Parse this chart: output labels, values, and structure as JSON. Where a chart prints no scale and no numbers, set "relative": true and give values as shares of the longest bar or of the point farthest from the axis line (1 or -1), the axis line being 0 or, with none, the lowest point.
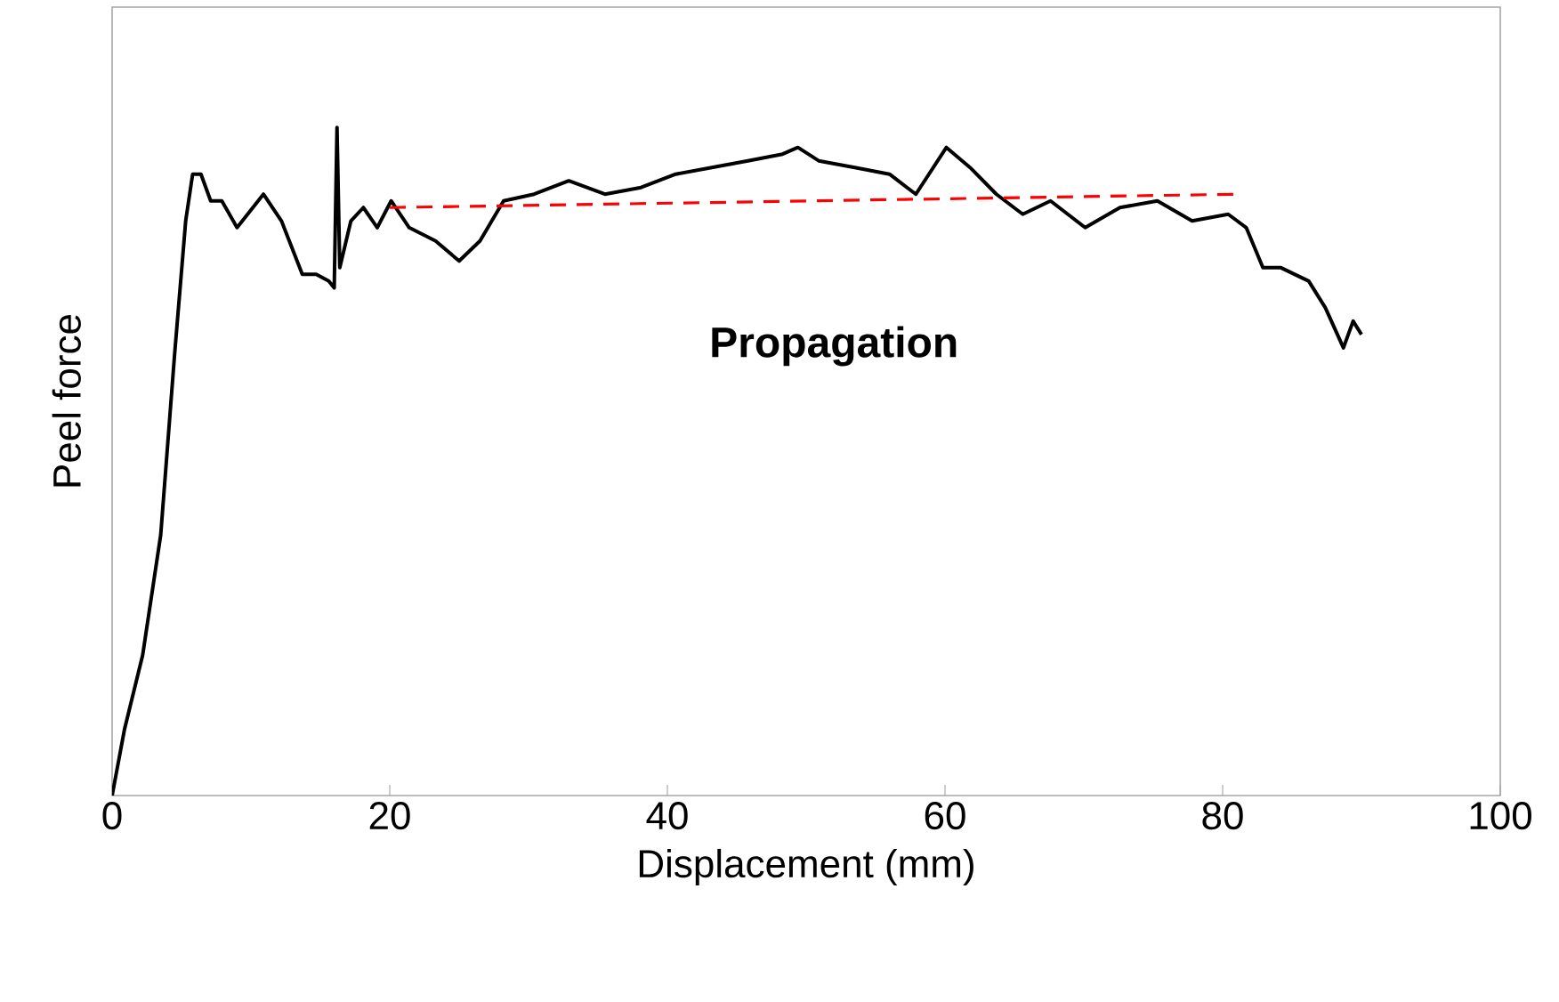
{
  "chart_data": {
    "type": "line",
    "xlabel": "Displacement  (mm)",
    "ylabel": "Peel force",
    "relative": true,
    "xlim": [
      0,
      100
    ],
    "xticks": [
      0,
      20,
      40,
      60,
      80,
      100
    ],
    "tick_labels": "x",
    "grid": false,
    "annotations": [
      "Propagation"
    ],
    "series": [
      {
        "color": "#000000",
        "line_style": "solid",
        "x": [
          0,
          0.9,
          2.2,
          3.5,
          4.5,
          5.3,
          5.8,
          6.4,
          7.1,
          7.9,
          9.0,
          10.9,
          12.2,
          13.7,
          14.7,
          15.6,
          16.0,
          16.2,
          16.4,
          17.2,
          18.1,
          19.1,
          20.1,
          21.4,
          23.3,
          25.0,
          26.5,
          28.2,
          30.4,
          32.9,
          35.5,
          38.1,
          40.6,
          43.2,
          45.8,
          48.3,
          49.4,
          50.9,
          53.5,
          56.0,
          57.9,
          60.1,
          61.8,
          63.7,
          65.6,
          67.6,
          70.1,
          72.6,
          75.3,
          77.8,
          80.4,
          81.7,
          82.9,
          84.2,
          86.2,
          87.4,
          88.7,
          89.4,
          90.0
        ],
        "values": [
          0,
          0.1,
          0.21,
          0.39,
          0.66,
          0.86,
          0.93,
          0.93,
          0.89,
          0.89,
          0.85,
          0.9,
          0.86,
          0.78,
          0.78,
          0.77,
          0.76,
          1.0,
          0.79,
          0.86,
          0.88,
          0.85,
          0.89,
          0.85,
          0.83,
          0.8,
          0.83,
          0.89,
          0.9,
          0.92,
          0.9,
          0.91,
          0.93,
          0.94,
          0.95,
          0.96,
          0.97,
          0.95,
          0.94,
          0.93,
          0.9,
          0.97,
          0.94,
          0.9,
          0.87,
          0.89,
          0.85,
          0.88,
          0.89,
          0.86,
          0.87,
          0.85,
          0.79,
          0.79,
          0.77,
          0.73,
          0.67,
          0.71,
          0.69
        ]
      },
      {
        "type": "line",
        "color": "#ff0000",
        "line_style": "dashed",
        "x": [
          20,
          81
        ],
        "values": [
          0.88,
          0.9
        ]
      }
    ]
  }
}
